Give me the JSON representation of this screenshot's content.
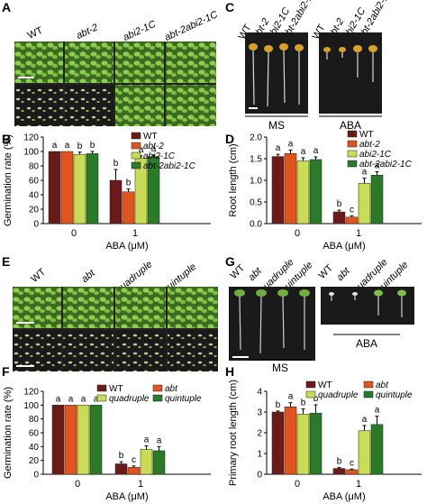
{
  "panels": {
    "A": {
      "letter": "A",
      "columns": [
        "WT",
        "abt-2",
        "abi2-1C",
        "abt-2abi2-1C"
      ],
      "column_styles": [
        "upright",
        "italic",
        "italic",
        "italic"
      ]
    },
    "C": {
      "letter": "C",
      "columns_ms": [
        "WT",
        "abt-2",
        "abi2-1C",
        "abt-2abi2-1C"
      ],
      "columns_aba": [
        "WT",
        "abt-2",
        "abi2-1C",
        "abt-2abi2-1C"
      ],
      "group_ms": "MS",
      "group_aba": "ABA"
    },
    "E": {
      "letter": "E",
      "columns": [
        "WT",
        "abt",
        "quadruple",
        "quintuple"
      ]
    },
    "G": {
      "letter": "G",
      "columns_ms": [
        "WT",
        "abt",
        "quadruple",
        "quintuple"
      ],
      "columns_aba": [
        "WT",
        "abt",
        "quadruple",
        "quintuple"
      ],
      "group_ms": "MS",
      "group_aba": "ABA"
    }
  },
  "colors": {
    "wt": "#6b1a1a",
    "mut1": "#e0551f",
    "mut2": "#c9dc57",
    "mut3": "#2a7a2a"
  },
  "chart_data": [
    {
      "panel": "B",
      "type": "bar",
      "ylabel": "Germination rate (%)",
      "xlabel": "ABA (μM)",
      "categories": [
        "0",
        "1"
      ],
      "ylim": [
        0,
        120
      ],
      "yticks": [
        0,
        20,
        40,
        60,
        80,
        100,
        120
      ],
      "legend_position": "top-right",
      "series": [
        {
          "name": "WT",
          "values": [
            100,
            60
          ],
          "errors": [
            0,
            15
          ],
          "letters": [
            "a",
            "b"
          ],
          "italic": false
        },
        {
          "name": "abt-2",
          "values": [
            100,
            44
          ],
          "errors": [
            0,
            4
          ],
          "letters": [
            "a",
            "b"
          ],
          "italic": true
        },
        {
          "name": "abi2-1C",
          "values": [
            96,
            91
          ],
          "errors": [
            3,
            3
          ],
          "letters": [
            "b",
            "a"
          ],
          "italic": true
        },
        {
          "name": "abt-2abi2-1C",
          "values": [
            97,
            93
          ],
          "errors": [
            3,
            2
          ],
          "letters": [
            "b",
            "a"
          ],
          "italic": true
        }
      ]
    },
    {
      "panel": "D",
      "type": "bar",
      "ylabel": "Root length (cm)",
      "xlabel": "ABA (μM)",
      "categories": [
        "0",
        "1"
      ],
      "ylim": [
        0,
        2
      ],
      "yticks": [
        0,
        0.5,
        1.0,
        1.5,
        2.0
      ],
      "legend_position": "top-right",
      "series": [
        {
          "name": "WT",
          "values": [
            1.55,
            0.27
          ],
          "errors": [
            0.05,
            0.04
          ],
          "letters": [
            "a",
            "b"
          ],
          "italic": false
        },
        {
          "name": "abt-2",
          "values": [
            1.62,
            0.15
          ],
          "errors": [
            0.08,
            0.03
          ],
          "letters": [
            "a",
            "c"
          ],
          "italic": true
        },
        {
          "name": "abi2-1C",
          "values": [
            1.45,
            0.93
          ],
          "errors": [
            0.07,
            0.12
          ],
          "letters": [
            "a",
            "a"
          ],
          "italic": true
        },
        {
          "name": "abt-2abi2-1C",
          "values": [
            1.48,
            1.12
          ],
          "errors": [
            0.06,
            0.08
          ],
          "letters": [
            "a",
            "a"
          ],
          "italic": true
        }
      ]
    },
    {
      "panel": "F",
      "type": "bar",
      "ylabel": "Germination rate (%)",
      "xlabel": "ABA (μM)",
      "categories": [
        "0",
        "1"
      ],
      "ylim": [
        0,
        120
      ],
      "yticks": [
        0,
        20,
        40,
        60,
        80,
        100,
        120
      ],
      "legend_position": "top",
      "series": [
        {
          "name": "WT",
          "values": [
            100,
            15
          ],
          "errors": [
            0,
            3
          ],
          "letters": [
            "a",
            "b"
          ],
          "italic": false
        },
        {
          "name": "abt",
          "values": [
            100,
            10
          ],
          "errors": [
            0,
            2
          ],
          "letters": [
            "a",
            "c"
          ],
          "italic": true
        },
        {
          "name": "quadruple",
          "values": [
            100,
            36
          ],
          "errors": [
            0,
            5
          ],
          "letters": [
            "a",
            "a"
          ],
          "italic": true
        },
        {
          "name": "quintuple",
          "values": [
            100,
            34
          ],
          "errors": [
            0,
            6
          ],
          "letters": [
            "a",
            "a"
          ],
          "italic": true
        }
      ]
    },
    {
      "panel": "H",
      "type": "bar",
      "ylabel": "Primary root length (cm)",
      "xlabel": "ABA (μM)",
      "categories": [
        "0",
        "1"
      ],
      "ylim": [
        0,
        4
      ],
      "yticks": [
        0,
        1,
        2,
        3,
        4
      ],
      "legend_position": "top",
      "series": [
        {
          "name": "WT",
          "values": [
            3.0,
            0.28
          ],
          "errors": [
            0.05,
            0.04
          ],
          "letters": [
            "b",
            "b"
          ],
          "italic": false
        },
        {
          "name": "abt",
          "values": [
            3.25,
            0.22
          ],
          "errors": [
            0.2,
            0.03
          ],
          "letters": [
            "a",
            "c"
          ],
          "italic": true
        },
        {
          "name": "quadruple",
          "values": [
            2.9,
            2.1
          ],
          "errors": [
            0.25,
            0.25
          ],
          "letters": [
            "b",
            "a"
          ],
          "italic": true
        },
        {
          "name": "quintuple",
          "values": [
            2.95,
            2.4
          ],
          "errors": [
            0.4,
            0.4
          ],
          "letters": [
            "b",
            "a"
          ],
          "italic": true
        }
      ]
    }
  ]
}
